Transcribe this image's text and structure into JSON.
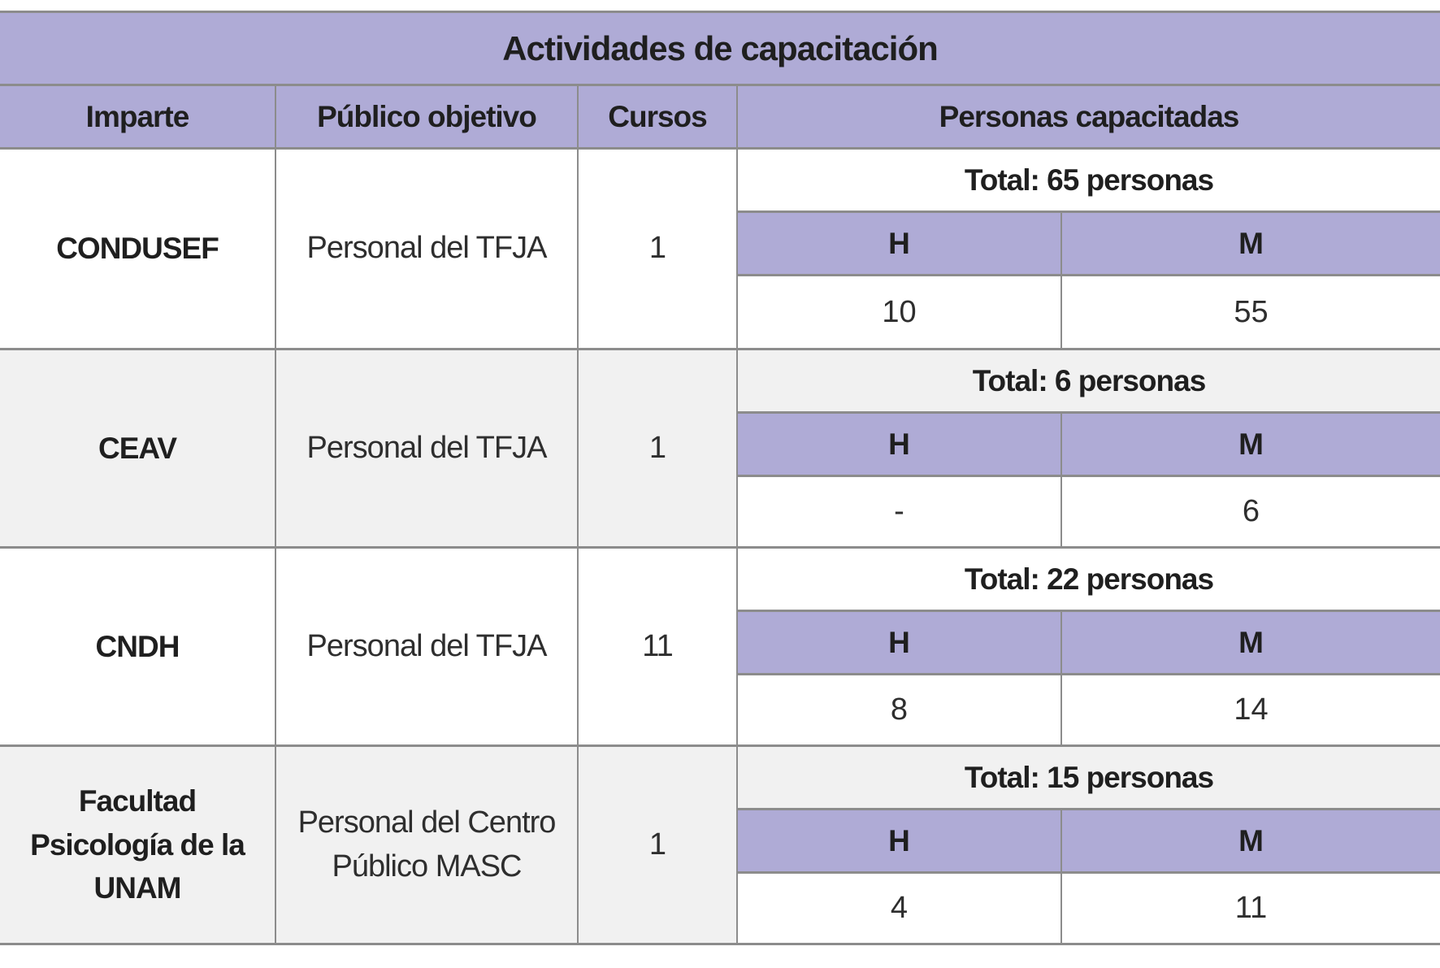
{
  "table": {
    "title": "Actividades de capacitación",
    "columns": {
      "imparte": "Imparte",
      "publico": "Público objetivo",
      "cursos": "Cursos",
      "personas": "Personas capacitadas"
    },
    "sub_columns": {
      "h": "H",
      "m": "M"
    },
    "rows": [
      {
        "imparte": "CONDUSEF",
        "publico": "Personal del TFJA",
        "cursos": "1",
        "total": "Total: 65 personas",
        "h": "10",
        "m": "55"
      },
      {
        "imparte": "CEAV",
        "publico": "Personal del TFJA",
        "cursos": "1",
        "total": "Total: 6 personas",
        "h": "-",
        "m": "6"
      },
      {
        "imparte": "CNDH",
        "publico": "Personal del TFJA",
        "cursos": "11",
        "total": "Total: 22 personas",
        "h": "8",
        "m": "14"
      },
      {
        "imparte": "Facultad Psicología de la UNAM",
        "publico": "Personal del Centro Público MASC",
        "cursos": "1",
        "total": "Total: 15 personas",
        "h": "4",
        "m": "11"
      }
    ],
    "colors": {
      "header_bg": "#AFABD6",
      "alt_row_bg": "#F1F1F1",
      "border": "#8C8C8C",
      "text": "#1F1F1F"
    }
  }
}
